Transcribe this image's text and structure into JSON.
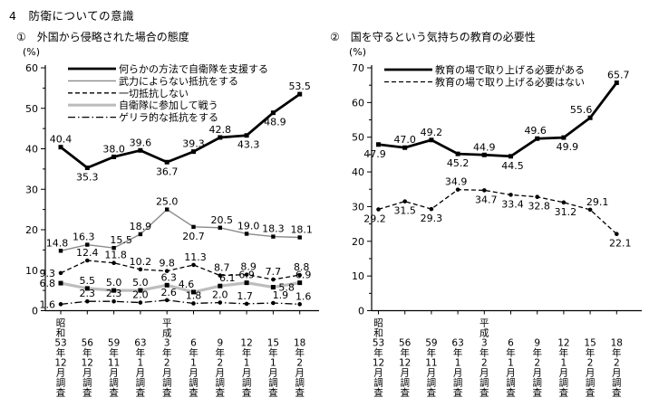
{
  "page": {
    "title": "4　防衛についての意識",
    "background_color": "#ffffff",
    "text_color": "#000000"
  },
  "chart_data": [
    {
      "type": "line",
      "title": "①　外国から侵略された場合の態度",
      "unit_label": "(%)",
      "xlabel": "",
      "ylabel": "(%)",
      "ylim": [
        0,
        60
      ],
      "ytick_major_step": 10,
      "ytick_minor_step": 5,
      "grid": false,
      "legend_position": "top-left-inside",
      "categories": [
        "昭和53年12月調査",
        "56年12月調査",
        "59年11月調査",
        "63年1月調査",
        "平成3年2月調査",
        "6年1月調査",
        "9年2月調査",
        "12年1月調査",
        "15年1月調査",
        "18年2月調査"
      ],
      "series": [
        {
          "name": "何らかの方法で自衛隊を支援する",
          "values": [
            40.4,
            35.3,
            38.0,
            39.6,
            36.7,
            39.3,
            42.8,
            43.3,
            48.9,
            53.5
          ],
          "color": "#000000",
          "line_width": 2.8,
          "dash": "",
          "marker": "square",
          "label_side": [
            "a",
            "b",
            "a",
            "a",
            "b",
            "a",
            "a",
            "b",
            "b",
            "a"
          ],
          "label_dx": [
            0,
            0,
            0,
            0,
            0,
            0,
            0,
            2,
            2,
            0
          ]
        },
        {
          "name": "武力によらない抵抗をする",
          "values": [
            14.8,
            16.3,
            15.5,
            18.9,
            25.0,
            20.7,
            20.5,
            19.0,
            18.3,
            18.1
          ],
          "color": "#8a8a8a",
          "line_width": 1.4,
          "dash": "",
          "marker": "square",
          "label_side": [
            "a",
            "a",
            "a",
            "a",
            "a",
            "b",
            "a",
            "a",
            "a",
            "a"
          ],
          "label_dx": [
            -4,
            -4,
            8,
            0,
            0,
            0,
            2,
            2,
            0,
            2
          ]
        },
        {
          "name": "一切抵抗しない",
          "values": [
            9.3,
            12.4,
            11.8,
            10.2,
            9.8,
            11.3,
            8.7,
            8.9,
            7.7,
            8.8
          ],
          "color": "#000000",
          "line_width": 1.3,
          "dash": "5,3",
          "marker": "dot",
          "label_side": [
            "l",
            "a",
            "a",
            "a",
            "a",
            "a",
            "a",
            "a",
            "a",
            "a"
          ],
          "label_dx": [
            0,
            0,
            2,
            0,
            0,
            2,
            2,
            2,
            0,
            2
          ]
        },
        {
          "name": "自衛隊に参加して戦う",
          "values": [
            6.8,
            5.5,
            5.0,
            5.0,
            6.3,
            4.6,
            6.1,
            6.9,
            5.8,
            6.9
          ],
          "color": "#bdbdbd",
          "line_width": 3.2,
          "dash": "",
          "marker": "square",
          "label_side": [
            "l",
            "a",
            "a",
            "a",
            "a",
            "a",
            "a",
            "a",
            "r",
            "a"
          ],
          "label_dx": [
            0,
            0,
            0,
            0,
            2,
            -8,
            8,
            0,
            0,
            4
          ]
        },
        {
          "name": "ゲリラ的な抵抗をする",
          "values": [
            1.6,
            2.3,
            2.3,
            2.0,
            2.6,
            1.8,
            2.0,
            1.7,
            1.9,
            1.6
          ],
          "color": "#000000",
          "line_width": 1.3,
          "dash": "8,3,1.5,3",
          "marker": "dot",
          "label_side": [
            "l",
            "a",
            "a",
            "a",
            "a",
            "a",
            "a",
            "a",
            "a",
            "a"
          ],
          "label_dx": [
            0,
            0,
            0,
            0,
            2,
            0,
            0,
            -2,
            8,
            4
          ]
        }
      ]
    },
    {
      "type": "line",
      "title": "②　国を守るという気持ちの教育の必要性",
      "unit_label": "(%)",
      "xlabel": "",
      "ylabel": "(%)",
      "ylim": [
        0,
        70
      ],
      "ytick_major_step": 10,
      "ytick_minor_step": 5,
      "grid": false,
      "legend_position": "top-left-inside",
      "categories": [
        "昭和53年12月調査",
        "56年12月調査",
        "59年11月調査",
        "63年1月調査",
        "平成3年2月調査",
        "6年1月調査",
        "9年2月調査",
        "12年1月調査",
        "15年2月調査",
        "18年2月調査"
      ],
      "series": [
        {
          "name": "教育の場で取り上げる必要がある",
          "values": [
            47.9,
            47.0,
            49.2,
            45.2,
            44.9,
            44.5,
            49.6,
            49.9,
            55.6,
            65.7
          ],
          "color": "#000000",
          "line_width": 2.8,
          "dash": "",
          "marker": "square",
          "label_side": [
            "b",
            "a",
            "a",
            "b",
            "a",
            "b",
            "a",
            "b",
            "a",
            "a"
          ],
          "label_dx": [
            -4,
            0,
            0,
            0,
            0,
            2,
            -2,
            4,
            -10,
            2
          ]
        },
        {
          "name": "教育の場で取り上げる必要はない",
          "values": [
            29.2,
            31.5,
            29.3,
            34.9,
            34.7,
            33.4,
            32.8,
            31.2,
            29.1,
            22.1
          ],
          "color": "#000000",
          "line_width": 1.3,
          "dash": "5,3",
          "marker": "dot",
          "label_side": [
            "b",
            "b",
            "b",
            "a",
            "b",
            "b",
            "b",
            "b",
            "a",
            "b"
          ],
          "label_dx": [
            -4,
            0,
            0,
            -2,
            2,
            2,
            2,
            2,
            8,
            4
          ]
        }
      ]
    }
  ]
}
